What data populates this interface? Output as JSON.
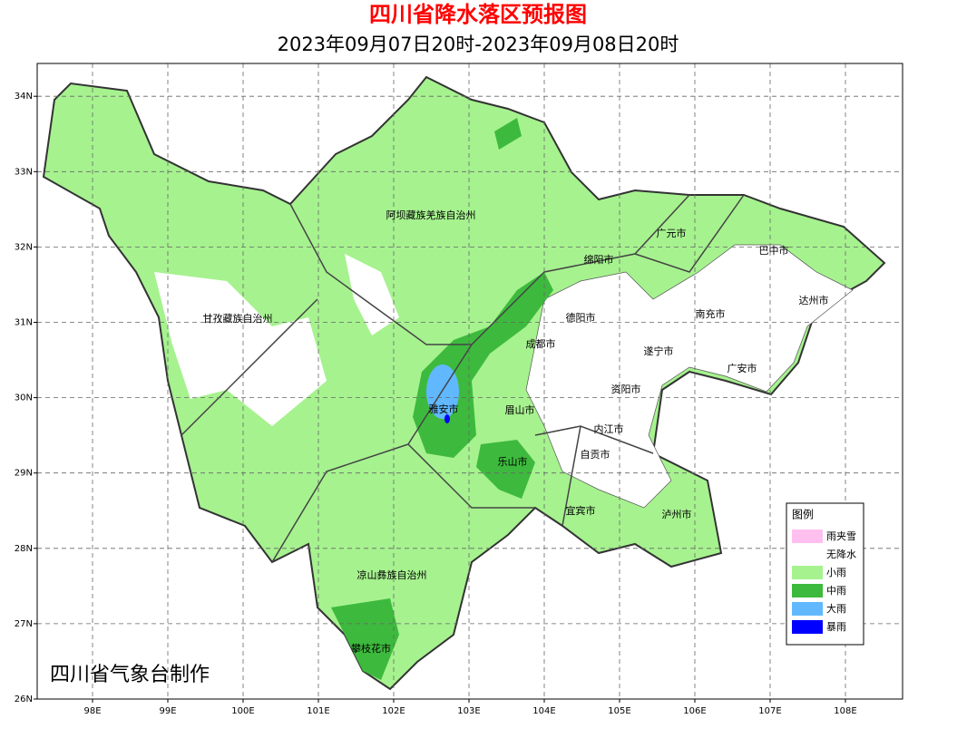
{
  "header": {
    "title": "四川省降水落区预报图",
    "subtitle": "2023年09月07日20时-2023年09月08日20时"
  },
  "axes": {
    "lon_ticks": [
      {
        "value": 98,
        "label": "98E"
      },
      {
        "value": 99,
        "label": "99E"
      },
      {
        "value": 100,
        "label": "100E"
      },
      {
        "value": 101,
        "label": "101E"
      },
      {
        "value": 102,
        "label": "102E"
      },
      {
        "value": 103,
        "label": "103E"
      },
      {
        "value": 104,
        "label": "104E"
      },
      {
        "value": 105,
        "label": "105E"
      },
      {
        "value": 106,
        "label": "106E"
      },
      {
        "value": 107,
        "label": "107E"
      },
      {
        "value": 108,
        "label": "108E"
      }
    ],
    "lat_ticks": [
      {
        "value": 26,
        "label": "26N"
      },
      {
        "value": 27,
        "label": "27N"
      },
      {
        "value": 28,
        "label": "28N"
      },
      {
        "value": 29,
        "label": "29N"
      },
      {
        "value": 30,
        "label": "30N"
      },
      {
        "value": 31,
        "label": "31N"
      },
      {
        "value": 32,
        "label": "32N"
      },
      {
        "value": 33,
        "label": "33N"
      },
      {
        "value": 34,
        "label": "34N"
      }
    ]
  },
  "cities": [
    "阿坝藏族羌族自治州",
    "广元市",
    "巴中市",
    "绵阳市",
    "达州市",
    "甘孜藏族自治州",
    "德阳市",
    "南充市",
    "成都市",
    "遂宁市",
    "广安市",
    "资阳市",
    "雅安市",
    "眉山市",
    "内江市",
    "自贡市",
    "乐山市",
    "宜宾市",
    "泸州市",
    "凉山彝族自治州",
    "攀枝花市"
  ],
  "legend": {
    "title": "图例",
    "items": [
      {
        "label": "雨夹雪",
        "color": "#ffc0f0"
      },
      {
        "label": "无降水",
        "color": "#ffffff"
      },
      {
        "label": "小雨",
        "color": "#a6f28f"
      },
      {
        "label": "中雨",
        "color": "#3dba3d"
      },
      {
        "label": "大雨",
        "color": "#61b8ff"
      },
      {
        "label": "暴雨",
        "color": "#0000fe"
      }
    ]
  },
  "credit": "四川省气象台制作"
}
